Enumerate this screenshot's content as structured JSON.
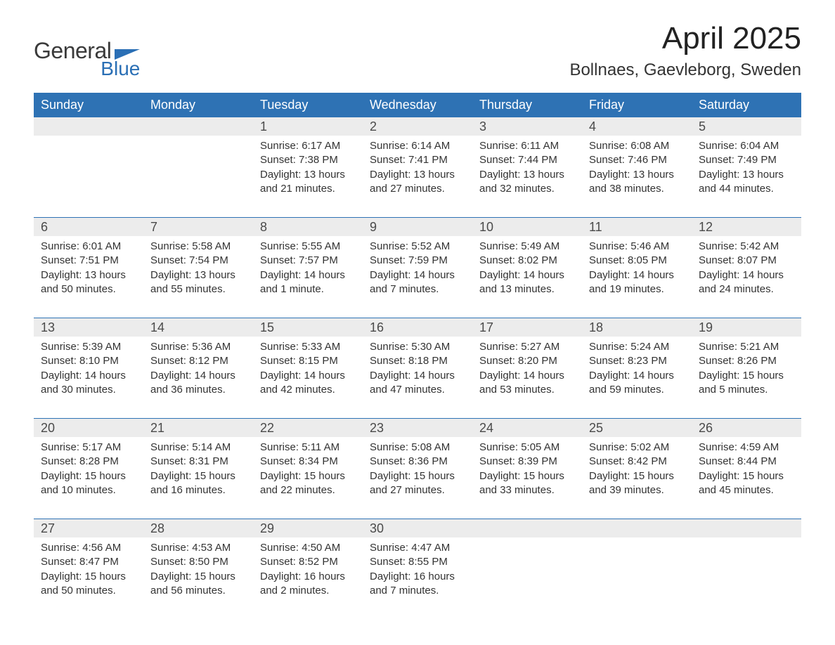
{
  "logo": {
    "text1": "General",
    "text2": "Blue",
    "color_dark": "#3a3a3a",
    "color_blue": "#2a6fb5"
  },
  "title": "April 2025",
  "location": "Bollnaes, Gaevleborg, Sweden",
  "colors": {
    "header_bg": "#2e72b4",
    "header_text": "#ffffff",
    "daynum_bg": "#ececec",
    "text": "#333333",
    "page_bg": "#ffffff"
  },
  "fonts": {
    "title_size_pt": 33,
    "location_size_pt": 18,
    "dayheader_size_pt": 14,
    "daynum_size_pt": 14,
    "body_size_pt": 11,
    "family": "Arial"
  },
  "day_headers": [
    "Sunday",
    "Monday",
    "Tuesday",
    "Wednesday",
    "Thursday",
    "Friday",
    "Saturday"
  ],
  "weeks": [
    [
      null,
      null,
      {
        "num": "1",
        "sunrise": "Sunrise: 6:17 AM",
        "sunset": "Sunset: 7:38 PM",
        "daylight": "Daylight: 13 hours and 21 minutes."
      },
      {
        "num": "2",
        "sunrise": "Sunrise: 6:14 AM",
        "sunset": "Sunset: 7:41 PM",
        "daylight": "Daylight: 13 hours and 27 minutes."
      },
      {
        "num": "3",
        "sunrise": "Sunrise: 6:11 AM",
        "sunset": "Sunset: 7:44 PM",
        "daylight": "Daylight: 13 hours and 32 minutes."
      },
      {
        "num": "4",
        "sunrise": "Sunrise: 6:08 AM",
        "sunset": "Sunset: 7:46 PM",
        "daylight": "Daylight: 13 hours and 38 minutes."
      },
      {
        "num": "5",
        "sunrise": "Sunrise: 6:04 AM",
        "sunset": "Sunset: 7:49 PM",
        "daylight": "Daylight: 13 hours and 44 minutes."
      }
    ],
    [
      {
        "num": "6",
        "sunrise": "Sunrise: 6:01 AM",
        "sunset": "Sunset: 7:51 PM",
        "daylight": "Daylight: 13 hours and 50 minutes."
      },
      {
        "num": "7",
        "sunrise": "Sunrise: 5:58 AM",
        "sunset": "Sunset: 7:54 PM",
        "daylight": "Daylight: 13 hours and 55 minutes."
      },
      {
        "num": "8",
        "sunrise": "Sunrise: 5:55 AM",
        "sunset": "Sunset: 7:57 PM",
        "daylight": "Daylight: 14 hours and 1 minute."
      },
      {
        "num": "9",
        "sunrise": "Sunrise: 5:52 AM",
        "sunset": "Sunset: 7:59 PM",
        "daylight": "Daylight: 14 hours and 7 minutes."
      },
      {
        "num": "10",
        "sunrise": "Sunrise: 5:49 AM",
        "sunset": "Sunset: 8:02 PM",
        "daylight": "Daylight: 14 hours and 13 minutes."
      },
      {
        "num": "11",
        "sunrise": "Sunrise: 5:46 AM",
        "sunset": "Sunset: 8:05 PM",
        "daylight": "Daylight: 14 hours and 19 minutes."
      },
      {
        "num": "12",
        "sunrise": "Sunrise: 5:42 AM",
        "sunset": "Sunset: 8:07 PM",
        "daylight": "Daylight: 14 hours and 24 minutes."
      }
    ],
    [
      {
        "num": "13",
        "sunrise": "Sunrise: 5:39 AM",
        "sunset": "Sunset: 8:10 PM",
        "daylight": "Daylight: 14 hours and 30 minutes."
      },
      {
        "num": "14",
        "sunrise": "Sunrise: 5:36 AM",
        "sunset": "Sunset: 8:12 PM",
        "daylight": "Daylight: 14 hours and 36 minutes."
      },
      {
        "num": "15",
        "sunrise": "Sunrise: 5:33 AM",
        "sunset": "Sunset: 8:15 PM",
        "daylight": "Daylight: 14 hours and 42 minutes."
      },
      {
        "num": "16",
        "sunrise": "Sunrise: 5:30 AM",
        "sunset": "Sunset: 8:18 PM",
        "daylight": "Daylight: 14 hours and 47 minutes."
      },
      {
        "num": "17",
        "sunrise": "Sunrise: 5:27 AM",
        "sunset": "Sunset: 8:20 PM",
        "daylight": "Daylight: 14 hours and 53 minutes."
      },
      {
        "num": "18",
        "sunrise": "Sunrise: 5:24 AM",
        "sunset": "Sunset: 8:23 PM",
        "daylight": "Daylight: 14 hours and 59 minutes."
      },
      {
        "num": "19",
        "sunrise": "Sunrise: 5:21 AM",
        "sunset": "Sunset: 8:26 PM",
        "daylight": "Daylight: 15 hours and 5 minutes."
      }
    ],
    [
      {
        "num": "20",
        "sunrise": "Sunrise: 5:17 AM",
        "sunset": "Sunset: 8:28 PM",
        "daylight": "Daylight: 15 hours and 10 minutes."
      },
      {
        "num": "21",
        "sunrise": "Sunrise: 5:14 AM",
        "sunset": "Sunset: 8:31 PM",
        "daylight": "Daylight: 15 hours and 16 minutes."
      },
      {
        "num": "22",
        "sunrise": "Sunrise: 5:11 AM",
        "sunset": "Sunset: 8:34 PM",
        "daylight": "Daylight: 15 hours and 22 minutes."
      },
      {
        "num": "23",
        "sunrise": "Sunrise: 5:08 AM",
        "sunset": "Sunset: 8:36 PM",
        "daylight": "Daylight: 15 hours and 27 minutes."
      },
      {
        "num": "24",
        "sunrise": "Sunrise: 5:05 AM",
        "sunset": "Sunset: 8:39 PM",
        "daylight": "Daylight: 15 hours and 33 minutes."
      },
      {
        "num": "25",
        "sunrise": "Sunrise: 5:02 AM",
        "sunset": "Sunset: 8:42 PM",
        "daylight": "Daylight: 15 hours and 39 minutes."
      },
      {
        "num": "26",
        "sunrise": "Sunrise: 4:59 AM",
        "sunset": "Sunset: 8:44 PM",
        "daylight": "Daylight: 15 hours and 45 minutes."
      }
    ],
    [
      {
        "num": "27",
        "sunrise": "Sunrise: 4:56 AM",
        "sunset": "Sunset: 8:47 PM",
        "daylight": "Daylight: 15 hours and 50 minutes."
      },
      {
        "num": "28",
        "sunrise": "Sunrise: 4:53 AM",
        "sunset": "Sunset: 8:50 PM",
        "daylight": "Daylight: 15 hours and 56 minutes."
      },
      {
        "num": "29",
        "sunrise": "Sunrise: 4:50 AM",
        "sunset": "Sunset: 8:52 PM",
        "daylight": "Daylight: 16 hours and 2 minutes."
      },
      {
        "num": "30",
        "sunrise": "Sunrise: 4:47 AM",
        "sunset": "Sunset: 8:55 PM",
        "daylight": "Daylight: 16 hours and 7 minutes."
      },
      null,
      null,
      null
    ]
  ]
}
